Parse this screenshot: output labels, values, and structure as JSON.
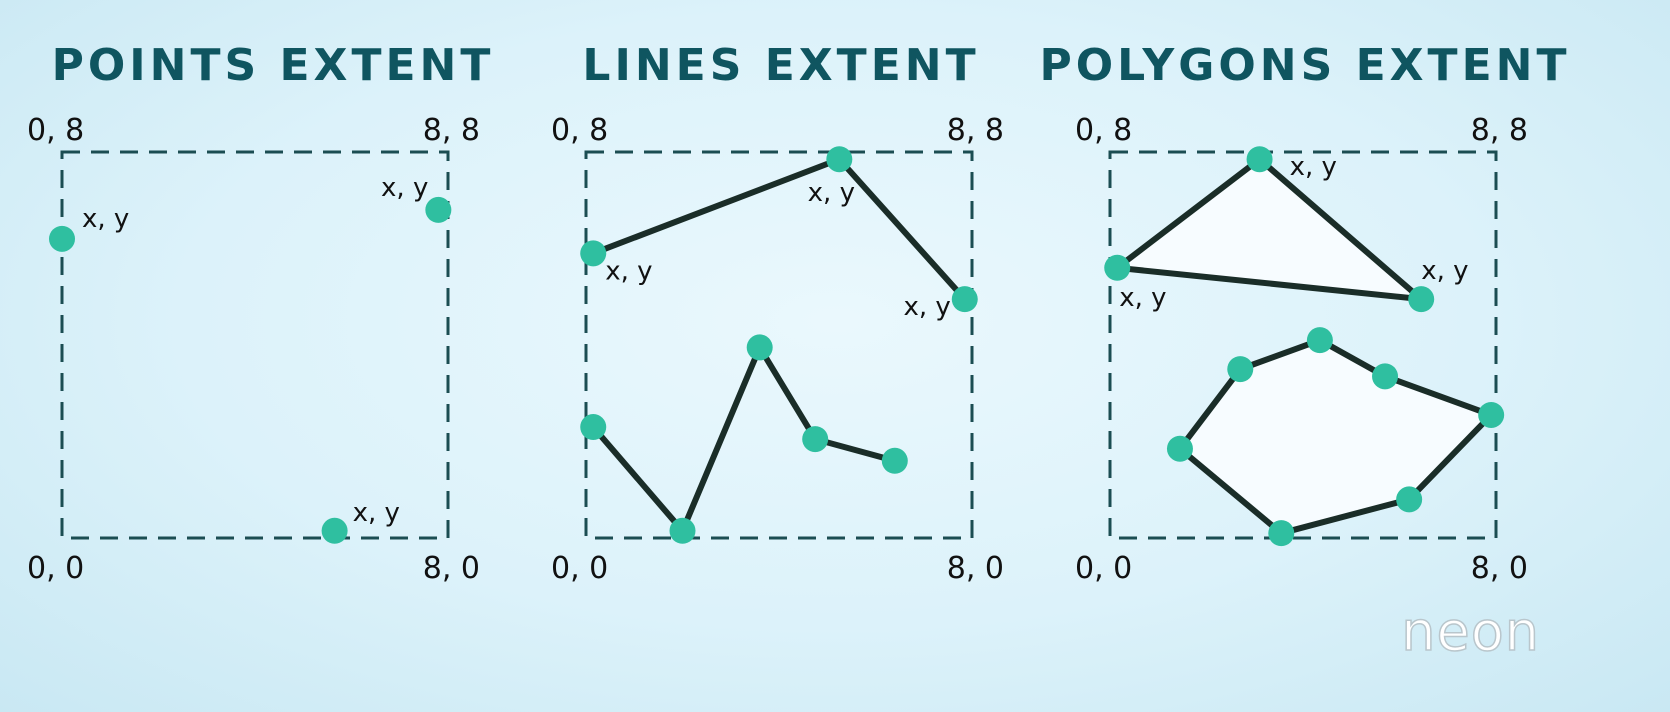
{
  "panels": [
    {
      "id": "points",
      "title": "POINTS EXTENT",
      "corners": {
        "top_left": "0, 8",
        "top_right": "8, 8",
        "bottom_left": "0, 0",
        "bottom_right": "8, 0"
      },
      "points": [
        {
          "x": 0.0,
          "y": 6.2,
          "label": "x, y"
        },
        {
          "x": 7.8,
          "y": 6.8,
          "label": "x, y"
        },
        {
          "x": 5.65,
          "y": 0.15,
          "label": "x, y"
        }
      ]
    },
    {
      "id": "lines",
      "title": "LINES EXTENT",
      "corners": {
        "top_left": "0, 8",
        "top_right": "8, 8",
        "bottom_left": "0, 0",
        "bottom_right": "8, 0"
      },
      "lines": [
        {
          "points": [
            {
              "x": 0.15,
              "y": 5.9,
              "label": "x, y"
            },
            {
              "x": 5.25,
              "y": 7.85,
              "label": "x, y"
            },
            {
              "x": 7.85,
              "y": 4.95,
              "label": "x, y"
            }
          ]
        },
        {
          "points": [
            {
              "x": 0.15,
              "y": 2.3
            },
            {
              "x": 2.0,
              "y": 0.15
            },
            {
              "x": 3.6,
              "y": 3.95
            },
            {
              "x": 4.75,
              "y": 2.05
            },
            {
              "x": 6.4,
              "y": 1.6
            }
          ]
        }
      ]
    },
    {
      "id": "polygons",
      "title": "POLYGONS EXTENT",
      "corners": {
        "top_left": "0, 8",
        "top_right": "8, 8",
        "bottom_left": "0, 0",
        "bottom_right": "8, 0"
      },
      "polygons": [
        {
          "points": [
            {
              "x": 0.15,
              "y": 5.6,
              "label": "x, y"
            },
            {
              "x": 3.1,
              "y": 7.85,
              "label": "x, y"
            },
            {
              "x": 6.45,
              "y": 4.95,
              "label": "x, y"
            }
          ]
        },
        {
          "points": [
            {
              "x": 1.45,
              "y": 1.85
            },
            {
              "x": 2.7,
              "y": 3.5
            },
            {
              "x": 4.35,
              "y": 4.1
            },
            {
              "x": 5.7,
              "y": 3.35
            },
            {
              "x": 7.9,
              "y": 2.55
            },
            {
              "x": 6.2,
              "y": 0.8
            },
            {
              "x": 3.55,
              "y": 0.1
            }
          ]
        }
      ]
    }
  ],
  "logo": {
    "text": "neon"
  },
  "colors": {
    "title": "#0f5560",
    "vertex": "#2fbfa0",
    "edge": "#1a2d28",
    "extent": "#1b4d52",
    "polygon_fill": "#f7fcff"
  }
}
